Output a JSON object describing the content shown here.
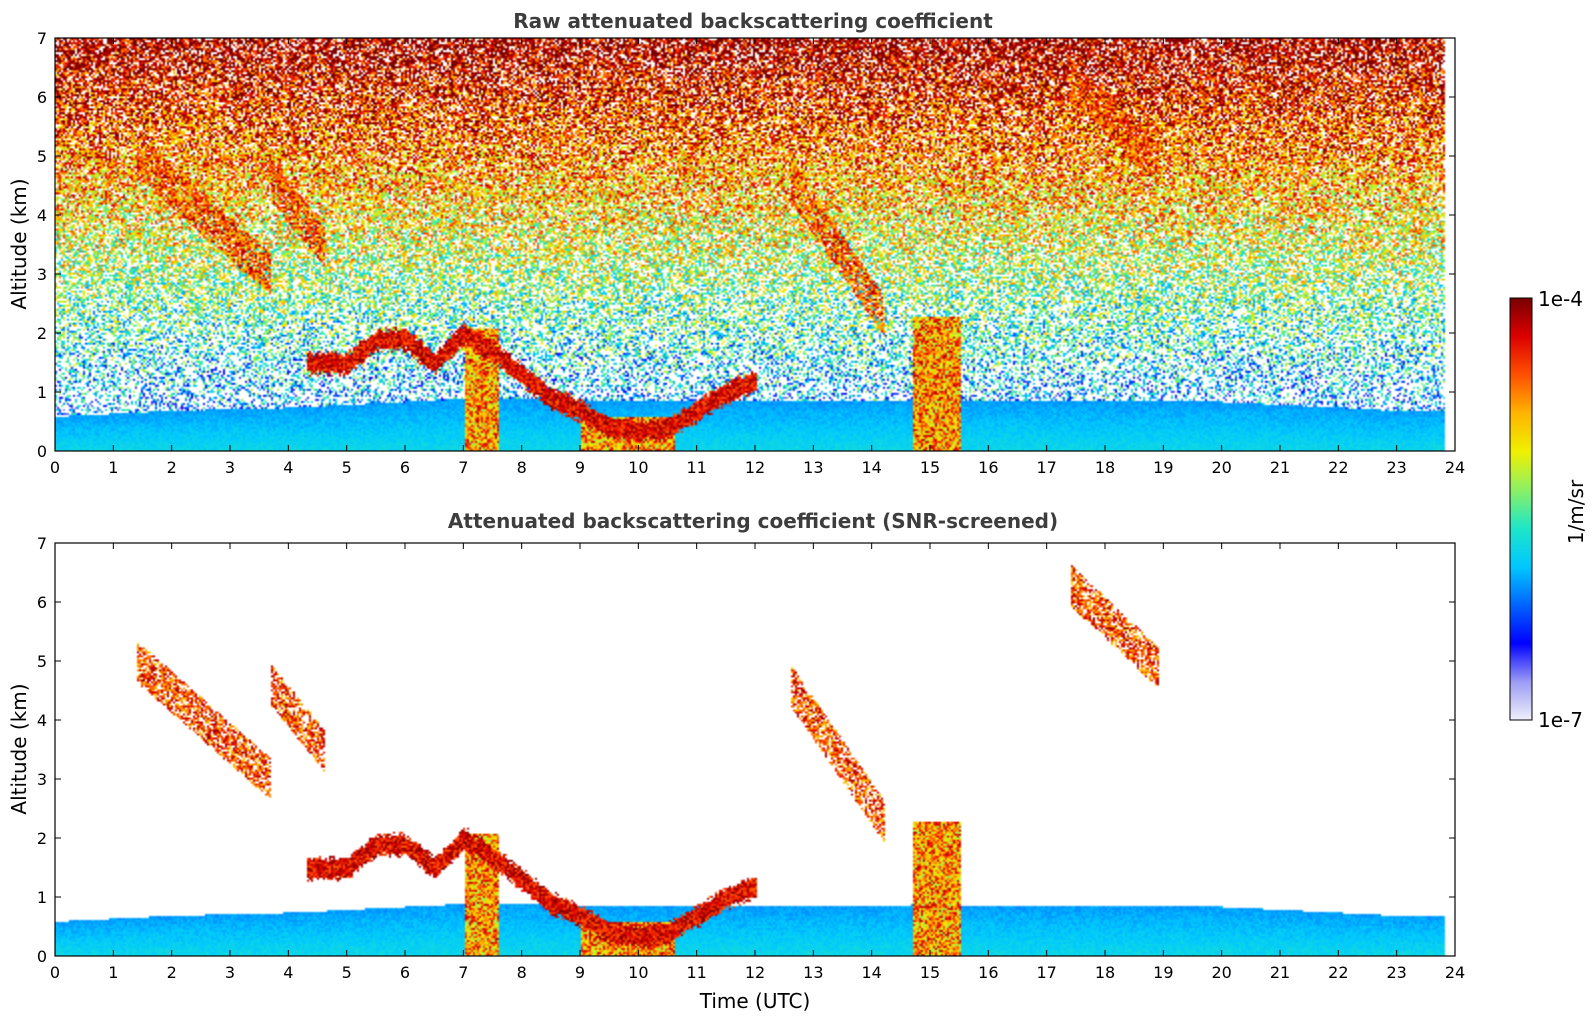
{
  "colors": {
    "background": "#ffffff",
    "title": "#3d3d3d",
    "colormap": [
      "#f0f0fa",
      "#9b9bf5",
      "#0000ff",
      "#0064ff",
      "#00c8ff",
      "#1ee6c8",
      "#8cf064",
      "#f0f000",
      "#ffb400",
      "#ff5000",
      "#dc0000",
      "#780000"
    ]
  },
  "chart_data": [
    {
      "type": "heatmap",
      "title": "Raw attenuated backscattering coefficient",
      "xlabel": "",
      "ylabel": "Altitude (km)",
      "xlim": [
        0,
        24
      ],
      "ylim": [
        0,
        7
      ],
      "xticks": [
        "0",
        "1",
        "2",
        "3",
        "4",
        "5",
        "6",
        "7",
        "8",
        "9",
        "10",
        "11",
        "12",
        "13",
        "14",
        "15",
        "16",
        "17",
        "18",
        "19",
        "20",
        "21",
        "22",
        "23",
        "24"
      ],
      "yticks": [
        "0",
        "1",
        "2",
        "3",
        "4",
        "5",
        "6",
        "7"
      ],
      "data_end_hour": 23.8,
      "screened": false,
      "layers": [
        {
          "kind": "boundary_layer",
          "x": [
            0,
            2,
            4,
            5,
            6,
            7,
            8,
            9,
            10,
            11,
            12,
            13,
            14,
            15,
            16,
            17,
            18,
            19,
            20,
            21,
            22,
            23,
            23.8
          ],
          "top_km": [
            0.6,
            0.7,
            0.75,
            0.8,
            0.85,
            0.9,
            0.9,
            0.85,
            0.85,
            0.85,
            0.85,
            0.85,
            0.85,
            0.9,
            0.85,
            0.85,
            0.85,
            0.85,
            0.85,
            0.8,
            0.75,
            0.7,
            0.7
          ]
        },
        {
          "kind": "cloud_deck",
          "x": [
            4.3,
            5.0,
            5.5,
            6.0,
            6.5,
            7.0,
            7.5,
            8.0,
            8.5,
            9.0,
            9.5,
            10.0,
            10.5,
            11.0,
            11.5,
            12.0
          ],
          "alt_km": [
            1.5,
            1.5,
            1.9,
            1.9,
            1.5,
            2.0,
            1.7,
            1.3,
            0.9,
            0.7,
            0.4,
            0.35,
            0.4,
            0.7,
            1.0,
            1.2
          ]
        },
        {
          "kind": "cloud_column",
          "x": [
            7.0,
            7.6
          ],
          "top_km": 2.1
        },
        {
          "kind": "cloud_column",
          "x": [
            9.0,
            10.6
          ],
          "top_km": 0.6
        },
        {
          "kind": "cloud_column",
          "x": [
            14.7,
            15.5
          ],
          "top_km": 2.3
        },
        {
          "kind": "cirrus",
          "x": [
            1.4,
            3.7
          ],
          "alt_km": [
            5.0,
            3.0
          ]
        },
        {
          "kind": "cirrus",
          "x": [
            3.7,
            4.6
          ],
          "alt_km": [
            4.6,
            3.5
          ]
        },
        {
          "kind": "cirrus",
          "x": [
            12.6,
            14.2
          ],
          "alt_km": [
            4.6,
            2.3
          ]
        },
        {
          "kind": "cirrus",
          "x": [
            17.4,
            18.9
          ],
          "alt_km": [
            6.3,
            4.9
          ]
        }
      ]
    },
    {
      "type": "heatmap",
      "title": "Attenuated backscattering coefficient (SNR-screened)",
      "xlabel": "Time (UTC)",
      "ylabel": "Altitude (km)",
      "xlim": [
        0,
        24
      ],
      "ylim": [
        0,
        7
      ],
      "xticks": [
        "0",
        "1",
        "2",
        "3",
        "4",
        "5",
        "6",
        "7",
        "8",
        "9",
        "10",
        "11",
        "12",
        "13",
        "14",
        "15",
        "16",
        "17",
        "18",
        "19",
        "20",
        "21",
        "22",
        "23",
        "24"
      ],
      "yticks": [
        "0",
        "1",
        "2",
        "3",
        "4",
        "5",
        "6",
        "7"
      ],
      "data_end_hour": 23.8,
      "screened": true
    }
  ],
  "colorbar": {
    "label": "1/m/sr",
    "max_label": "1e-4",
    "min_label": "1e-7",
    "scale": "log",
    "range": [
      1e-07,
      0.0001
    ]
  }
}
